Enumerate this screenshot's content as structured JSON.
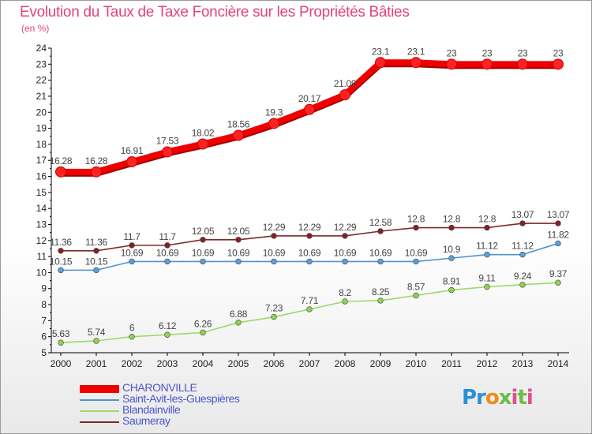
{
  "title": "Evolution du Taux de Taxe Foncière sur les Propriétés Bâties",
  "unit_label": "(en %)",
  "logo": "Proxiti",
  "chart_data": {
    "type": "line",
    "title": "Evolution du Taux de Taxe Foncière sur les Propriétés Bâties",
    "ylabel": "(en %)",
    "xlabel": "",
    "x": [
      "2000",
      "2001",
      "2002",
      "2003",
      "2004",
      "2005",
      "2006",
      "2007",
      "2008",
      "2009",
      "2010",
      "2011",
      "2012",
      "2013",
      "2014"
    ],
    "ylim": [
      5,
      24
    ],
    "yticks": [
      "5",
      "6",
      "7",
      "8",
      "9",
      "10",
      "11",
      "12",
      "13",
      "14",
      "15",
      "16",
      "17",
      "18",
      "19",
      "20",
      "21",
      "22",
      "23",
      "24"
    ],
    "grid": false,
    "legend_position": "bottom-left",
    "series": [
      {
        "name": "CHARONVILLE",
        "color": "#ee0000",
        "values": [
          16.28,
          16.28,
          16.91,
          17.53,
          18.02,
          18.56,
          19.3,
          20.17,
          21.09,
          23.1,
          23.1,
          23,
          23,
          23,
          23
        ],
        "labels": [
          "16.28",
          "16.28",
          "16.91",
          "17.53",
          "18.02",
          "18.56",
          "19.3",
          "20.17",
          "21.09",
          "23.1",
          "23.1",
          "23",
          "23",
          "23",
          "23"
        ]
      },
      {
        "name": "Saint-Avit-les-Guespières",
        "color": "#4f93cf",
        "values": [
          10.15,
          10.15,
          10.69,
          10.69,
          10.69,
          10.69,
          10.69,
          10.69,
          10.69,
          10.69,
          10.69,
          10.9,
          11.12,
          11.12,
          11.82
        ],
        "labels": [
          "10.15",
          "10.15",
          "10.69",
          "10.69",
          "10.69",
          "10.69",
          "10.69",
          "10.69",
          "10.69",
          "10.69",
          "10.69",
          "10.9",
          "11.12",
          "11.12",
          "11.82"
        ]
      },
      {
        "name": "Blandainville",
        "color": "#9ed86a",
        "values": [
          5.63,
          5.74,
          6,
          6.12,
          6.26,
          6.88,
          7.23,
          7.71,
          8.2,
          8.25,
          8.57,
          8.91,
          9.11,
          9.24,
          9.37
        ],
        "labels": [
          "5.63",
          "5.74",
          "6",
          "6.12",
          "6.26",
          "6.88",
          "7.23",
          "7.71",
          "8.2",
          "8.25",
          "8.57",
          "8.91",
          "9.11",
          "9.24",
          "9.37"
        ]
      },
      {
        "name": "Saumeray",
        "color": "#7a2a2a",
        "values": [
          11.36,
          11.36,
          11.7,
          11.7,
          12.05,
          12.05,
          12.29,
          12.29,
          12.29,
          12.58,
          12.8,
          12.8,
          12.8,
          13.07,
          13.07
        ],
        "labels": [
          "11.36",
          "11.36",
          "11.7",
          "11.7",
          "12.05",
          "12.05",
          "12.29",
          "12.29",
          "12.29",
          "12.58",
          "12.8",
          "12.8",
          "12.8",
          "13.07",
          "13.07"
        ]
      }
    ]
  }
}
